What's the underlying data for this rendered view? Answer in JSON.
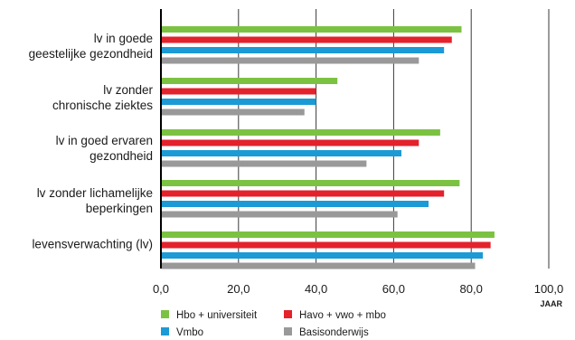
{
  "chart_data": {
    "type": "bar",
    "orientation": "horizontal",
    "categories": [
      [
        "lv in goede",
        "geestelijke gezondheid"
      ],
      [
        "lv zonder",
        "chronische ziektes"
      ],
      [
        "lv in goed ervaren",
        "gezondheid"
      ],
      [
        "lv zonder lichamelijke",
        "beperkingen"
      ],
      [
        "levensverwachting (lv)"
      ]
    ],
    "series": [
      {
        "name": "Hbo + universiteit",
        "color": "#7cc242",
        "values": [
          77.5,
          45.5,
          72,
          77,
          86
        ]
      },
      {
        "name": "Havo + vwo + mbo",
        "color": "#e3222c",
        "values": [
          75,
          40,
          66.5,
          73,
          85
        ]
      },
      {
        "name": "Vmbo",
        "color": "#1b9ad6",
        "values": [
          73,
          40,
          62,
          69,
          83
        ]
      },
      {
        "name": "Basisonderwijs",
        "color": "#999999",
        "values": [
          66.5,
          37,
          53,
          61,
          81
        ]
      }
    ],
    "xlim": [
      0,
      100
    ],
    "xticks": [
      "0,0",
      "20,0",
      "40,0",
      "60,0",
      "80,0",
      "100,0"
    ],
    "xlabel": "JAAR",
    "grid": true,
    "legend_position": "bottom"
  }
}
